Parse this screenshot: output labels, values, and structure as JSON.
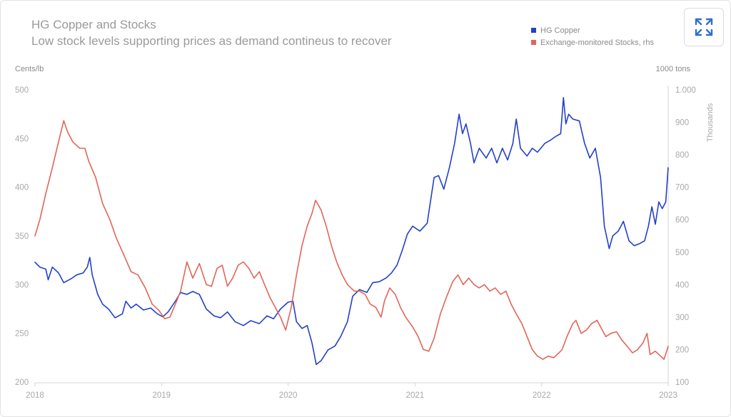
{
  "chart_data": {
    "type": "line",
    "title": "HG Copper and Stocks",
    "subtitle": "Low stock levels supporting prices as demand contineus to recover",
    "left_axis_unit": "Cents/lb",
    "right_axis_unit": "1000 tons",
    "right_axis_label": "Thousands",
    "ylim": [
      200,
      500
    ],
    "y2lim": [
      100,
      1000
    ],
    "xlim": [
      "2018-01-01",
      "2023-01-01"
    ],
    "x_ticks": [
      "2018",
      "2019",
      "2020",
      "2021",
      "2022",
      "2023"
    ],
    "y_ticks": [
      "200",
      "250",
      "300",
      "350",
      "400",
      "450",
      "500"
    ],
    "y2_ticks": [
      "100",
      "200",
      "300",
      "400",
      "500",
      "600",
      "700",
      "800",
      "900",
      "1.000"
    ],
    "grid": false,
    "legend_position": "top-right",
    "series": [
      {
        "name": "HG Copper",
        "axis": "left",
        "color": "#2340c8",
        "points": [
          [
            "2018-01-01",
            323
          ],
          [
            "2018-01-15",
            318
          ],
          [
            "2018-02-01",
            316
          ],
          [
            "2018-02-08",
            305
          ],
          [
            "2018-02-20",
            318
          ],
          [
            "2018-03-10",
            312
          ],
          [
            "2018-03-25",
            302
          ],
          [
            "2018-04-15",
            306
          ],
          [
            "2018-05-01",
            310
          ],
          [
            "2018-05-20",
            312
          ],
          [
            "2018-06-01",
            318
          ],
          [
            "2018-06-08",
            328
          ],
          [
            "2018-06-15",
            310
          ],
          [
            "2018-07-01",
            290
          ],
          [
            "2018-07-15",
            280
          ],
          [
            "2018-08-01",
            275
          ],
          [
            "2018-08-20",
            266
          ],
          [
            "2018-09-10",
            270
          ],
          [
            "2018-09-20",
            283
          ],
          [
            "2018-10-05",
            276
          ],
          [
            "2018-10-20",
            280
          ],
          [
            "2018-11-10",
            274
          ],
          [
            "2018-12-01",
            276
          ],
          [
            "2018-12-20",
            270
          ],
          [
            "2019-01-05",
            267
          ],
          [
            "2019-01-20",
            272
          ],
          [
            "2019-02-10",
            283
          ],
          [
            "2019-02-25",
            292
          ],
          [
            "2019-03-15",
            290
          ],
          [
            "2019-04-01",
            293
          ],
          [
            "2019-04-20",
            290
          ],
          [
            "2019-05-10",
            275
          ],
          [
            "2019-06-01",
            268
          ],
          [
            "2019-06-20",
            266
          ],
          [
            "2019-07-10",
            272
          ],
          [
            "2019-08-01",
            262
          ],
          [
            "2019-08-25",
            258
          ],
          [
            "2019-09-15",
            263
          ],
          [
            "2019-10-10",
            260
          ],
          [
            "2019-11-01",
            268
          ],
          [
            "2019-11-20",
            265
          ],
          [
            "2019-12-10",
            275
          ],
          [
            "2020-01-01",
            282
          ],
          [
            "2020-01-15",
            283
          ],
          [
            "2020-01-25",
            262
          ],
          [
            "2020-02-10",
            255
          ],
          [
            "2020-02-25",
            258
          ],
          [
            "2020-03-10",
            240
          ],
          [
            "2020-03-22",
            218
          ],
          [
            "2020-04-05",
            222
          ],
          [
            "2020-04-25",
            233
          ],
          [
            "2020-05-15",
            237
          ],
          [
            "2020-06-01",
            247
          ],
          [
            "2020-06-20",
            262
          ],
          [
            "2020-07-05",
            288
          ],
          [
            "2020-07-25",
            295
          ],
          [
            "2020-08-15",
            292
          ],
          [
            "2020-09-01",
            302
          ],
          [
            "2020-09-20",
            303
          ],
          [
            "2020-10-10",
            307
          ],
          [
            "2020-10-25",
            312
          ],
          [
            "2020-11-10",
            320
          ],
          [
            "2020-11-25",
            335
          ],
          [
            "2020-12-10",
            352
          ],
          [
            "2020-12-25",
            360
          ],
          [
            "2021-01-15",
            355
          ],
          [
            "2021-02-05",
            363
          ],
          [
            "2021-02-25",
            410
          ],
          [
            "2021-03-10",
            412
          ],
          [
            "2021-03-25",
            398
          ],
          [
            "2021-04-10",
            420
          ],
          [
            "2021-04-25",
            445
          ],
          [
            "2021-05-08",
            475
          ],
          [
            "2021-05-18",
            455
          ],
          [
            "2021-05-28",
            465
          ],
          [
            "2021-06-10",
            445
          ],
          [
            "2021-06-20",
            425
          ],
          [
            "2021-07-05",
            440
          ],
          [
            "2021-07-25",
            430
          ],
          [
            "2021-08-10",
            440
          ],
          [
            "2021-08-25",
            425
          ],
          [
            "2021-09-10",
            440
          ],
          [
            "2021-09-25",
            428
          ],
          [
            "2021-10-10",
            445
          ],
          [
            "2021-10-20",
            470
          ],
          [
            "2021-11-01",
            440
          ],
          [
            "2021-11-20",
            432
          ],
          [
            "2021-12-05",
            440
          ],
          [
            "2021-12-20",
            436
          ],
          [
            "2022-01-10",
            445
          ],
          [
            "2022-01-25",
            448
          ],
          [
            "2022-02-10",
            452
          ],
          [
            "2022-02-25",
            455
          ],
          [
            "2022-03-05",
            492
          ],
          [
            "2022-03-12",
            465
          ],
          [
            "2022-03-20",
            475
          ],
          [
            "2022-04-01",
            470
          ],
          [
            "2022-04-20",
            468
          ],
          [
            "2022-05-05",
            445
          ],
          [
            "2022-05-20",
            430
          ],
          [
            "2022-06-05",
            440
          ],
          [
            "2022-06-20",
            410
          ],
          [
            "2022-07-01",
            360
          ],
          [
            "2022-07-15",
            337
          ],
          [
            "2022-07-25",
            350
          ],
          [
            "2022-08-10",
            355
          ],
          [
            "2022-08-25",
            365
          ],
          [
            "2022-09-10",
            345
          ],
          [
            "2022-09-25",
            340
          ],
          [
            "2022-10-10",
            342
          ],
          [
            "2022-10-25",
            345
          ],
          [
            "2022-11-05",
            360
          ],
          [
            "2022-11-15",
            380
          ],
          [
            "2022-11-25",
            362
          ],
          [
            "2022-12-05",
            385
          ],
          [
            "2022-12-15",
            378
          ],
          [
            "2022-12-25",
            385
          ],
          [
            "2023-01-01",
            420
          ]
        ]
      },
      {
        "name": "Exchange-monitored Stocks, rhs",
        "axis": "right",
        "color": "#e06659",
        "points": [
          [
            "2018-01-01",
            550
          ],
          [
            "2018-01-15",
            600
          ],
          [
            "2018-02-01",
            680
          ],
          [
            "2018-02-20",
            760
          ],
          [
            "2018-03-10",
            840
          ],
          [
            "2018-03-25",
            905
          ],
          [
            "2018-04-05",
            870
          ],
          [
            "2018-04-20",
            840
          ],
          [
            "2018-05-10",
            820
          ],
          [
            "2018-05-25",
            820
          ],
          [
            "2018-06-05",
            780
          ],
          [
            "2018-06-25",
            730
          ],
          [
            "2018-07-15",
            650
          ],
          [
            "2018-08-05",
            600
          ],
          [
            "2018-08-25",
            540
          ],
          [
            "2018-09-15",
            490
          ],
          [
            "2018-10-05",
            440
          ],
          [
            "2018-10-25",
            430
          ],
          [
            "2018-11-15",
            390
          ],
          [
            "2018-12-05",
            340
          ],
          [
            "2018-12-25",
            320
          ],
          [
            "2019-01-10",
            295
          ],
          [
            "2019-01-25",
            300
          ],
          [
            "2019-02-10",
            340
          ],
          [
            "2019-02-25",
            380
          ],
          [
            "2019-03-15",
            470
          ],
          [
            "2019-04-01",
            420
          ],
          [
            "2019-04-20",
            465
          ],
          [
            "2019-05-10",
            400
          ],
          [
            "2019-05-25",
            395
          ],
          [
            "2019-06-10",
            450
          ],
          [
            "2019-06-25",
            460
          ],
          [
            "2019-07-10",
            395
          ],
          [
            "2019-07-25",
            420
          ],
          [
            "2019-08-10",
            460
          ],
          [
            "2019-08-25",
            470
          ],
          [
            "2019-09-10",
            450
          ],
          [
            "2019-09-25",
            420
          ],
          [
            "2019-10-10",
            440
          ],
          [
            "2019-10-25",
            400
          ],
          [
            "2019-11-10",
            360
          ],
          [
            "2019-11-25",
            330
          ],
          [
            "2019-12-10",
            300
          ],
          [
            "2019-12-25",
            260
          ],
          [
            "2020-01-10",
            330
          ],
          [
            "2020-01-25",
            430
          ],
          [
            "2020-02-10",
            520
          ],
          [
            "2020-02-25",
            580
          ],
          [
            "2020-03-10",
            620
          ],
          [
            "2020-03-20",
            660
          ],
          [
            "2020-04-05",
            630
          ],
          [
            "2020-04-20",
            580
          ],
          [
            "2020-05-05",
            520
          ],
          [
            "2020-05-20",
            470
          ],
          [
            "2020-06-05",
            430
          ],
          [
            "2020-06-20",
            400
          ],
          [
            "2020-07-10",
            380
          ],
          [
            "2020-07-25",
            380
          ],
          [
            "2020-08-10",
            370
          ],
          [
            "2020-08-25",
            340
          ],
          [
            "2020-09-10",
            330
          ],
          [
            "2020-09-25",
            300
          ],
          [
            "2020-10-05",
            350
          ],
          [
            "2020-10-20",
            390
          ],
          [
            "2020-11-05",
            370
          ],
          [
            "2020-11-20",
            330
          ],
          [
            "2020-12-05",
            300
          ],
          [
            "2020-12-25",
            270
          ],
          [
            "2021-01-10",
            240
          ],
          [
            "2021-01-25",
            200
          ],
          [
            "2021-02-10",
            195
          ],
          [
            "2021-02-25",
            235
          ],
          [
            "2021-03-15",
            310
          ],
          [
            "2021-04-01",
            360
          ],
          [
            "2021-04-20",
            410
          ],
          [
            "2021-05-05",
            430
          ],
          [
            "2021-05-20",
            400
          ],
          [
            "2021-06-05",
            420
          ],
          [
            "2021-06-20",
            400
          ],
          [
            "2021-07-05",
            390
          ],
          [
            "2021-07-20",
            400
          ],
          [
            "2021-08-05",
            380
          ],
          [
            "2021-08-20",
            390
          ],
          [
            "2021-09-05",
            370
          ],
          [
            "2021-09-20",
            380
          ],
          [
            "2021-10-05",
            340
          ],
          [
            "2021-10-20",
            310
          ],
          [
            "2021-11-05",
            280
          ],
          [
            "2021-11-20",
            240
          ],
          [
            "2021-12-05",
            200
          ],
          [
            "2021-12-20",
            180
          ],
          [
            "2022-01-05",
            170
          ],
          [
            "2022-01-20",
            180
          ],
          [
            "2022-02-05",
            175
          ],
          [
            "2022-02-20",
            190
          ],
          [
            "2022-03-01",
            200
          ],
          [
            "2022-03-15",
            240
          ],
          [
            "2022-04-01",
            280
          ],
          [
            "2022-04-10",
            290
          ],
          [
            "2022-04-25",
            250
          ],
          [
            "2022-05-10",
            260
          ],
          [
            "2022-05-25",
            280
          ],
          [
            "2022-06-10",
            290
          ],
          [
            "2022-06-20",
            270
          ],
          [
            "2022-07-05",
            240
          ],
          [
            "2022-07-20",
            250
          ],
          [
            "2022-08-05",
            255
          ],
          [
            "2022-08-20",
            230
          ],
          [
            "2022-09-05",
            210
          ],
          [
            "2022-09-20",
            190
          ],
          [
            "2022-10-05",
            200
          ],
          [
            "2022-10-20",
            220
          ],
          [
            "2022-11-01",
            250
          ],
          [
            "2022-11-10",
            185
          ],
          [
            "2022-11-25",
            195
          ],
          [
            "2022-12-10",
            180
          ],
          [
            "2022-12-20",
            170
          ],
          [
            "2023-01-01",
            210
          ]
        ]
      }
    ]
  }
}
